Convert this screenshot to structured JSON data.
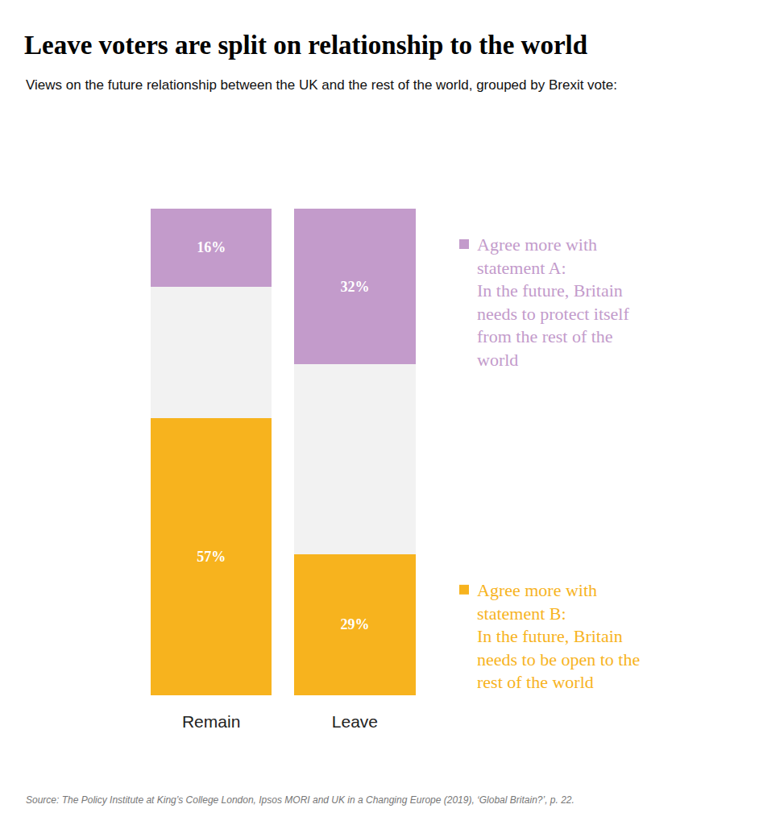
{
  "chart_data": {
    "type": "bar",
    "title": "Leave voters are split on relationship to the world",
    "subtitle": "Views on the future relationship between the UK and the rest of the world, grouped by Brexit vote:",
    "source": "Source: The Policy Institute at King’s College London, Ipsos MORI and UK in a Changing Europe (2019), ‘Global Britain?’, p. 22.",
    "categories": [
      "Remain",
      "Leave"
    ],
    "stacked": true,
    "tick_labels": "x",
    "ylim": [
      0,
      100
    ],
    "series": [
      {
        "name": "Agree more with statement B: In the future, Britain needs to be open to the rest of the world",
        "color": "#f7b31e",
        "values": [
          57,
          29
        ],
        "value_labels": [
          "57%",
          "29%"
        ],
        "data_labels": true
      },
      {
        "color": "#f2f2f2",
        "values": [
          27,
          39
        ],
        "data_labels": false
      },
      {
        "name": "Agree more with statement A: In the future, Britain needs to protect itself from the rest of the world",
        "color": "#c39bcb",
        "values": [
          16,
          32
        ],
        "value_labels": [
          "16%",
          "32%"
        ],
        "data_labels": true
      }
    ]
  }
}
